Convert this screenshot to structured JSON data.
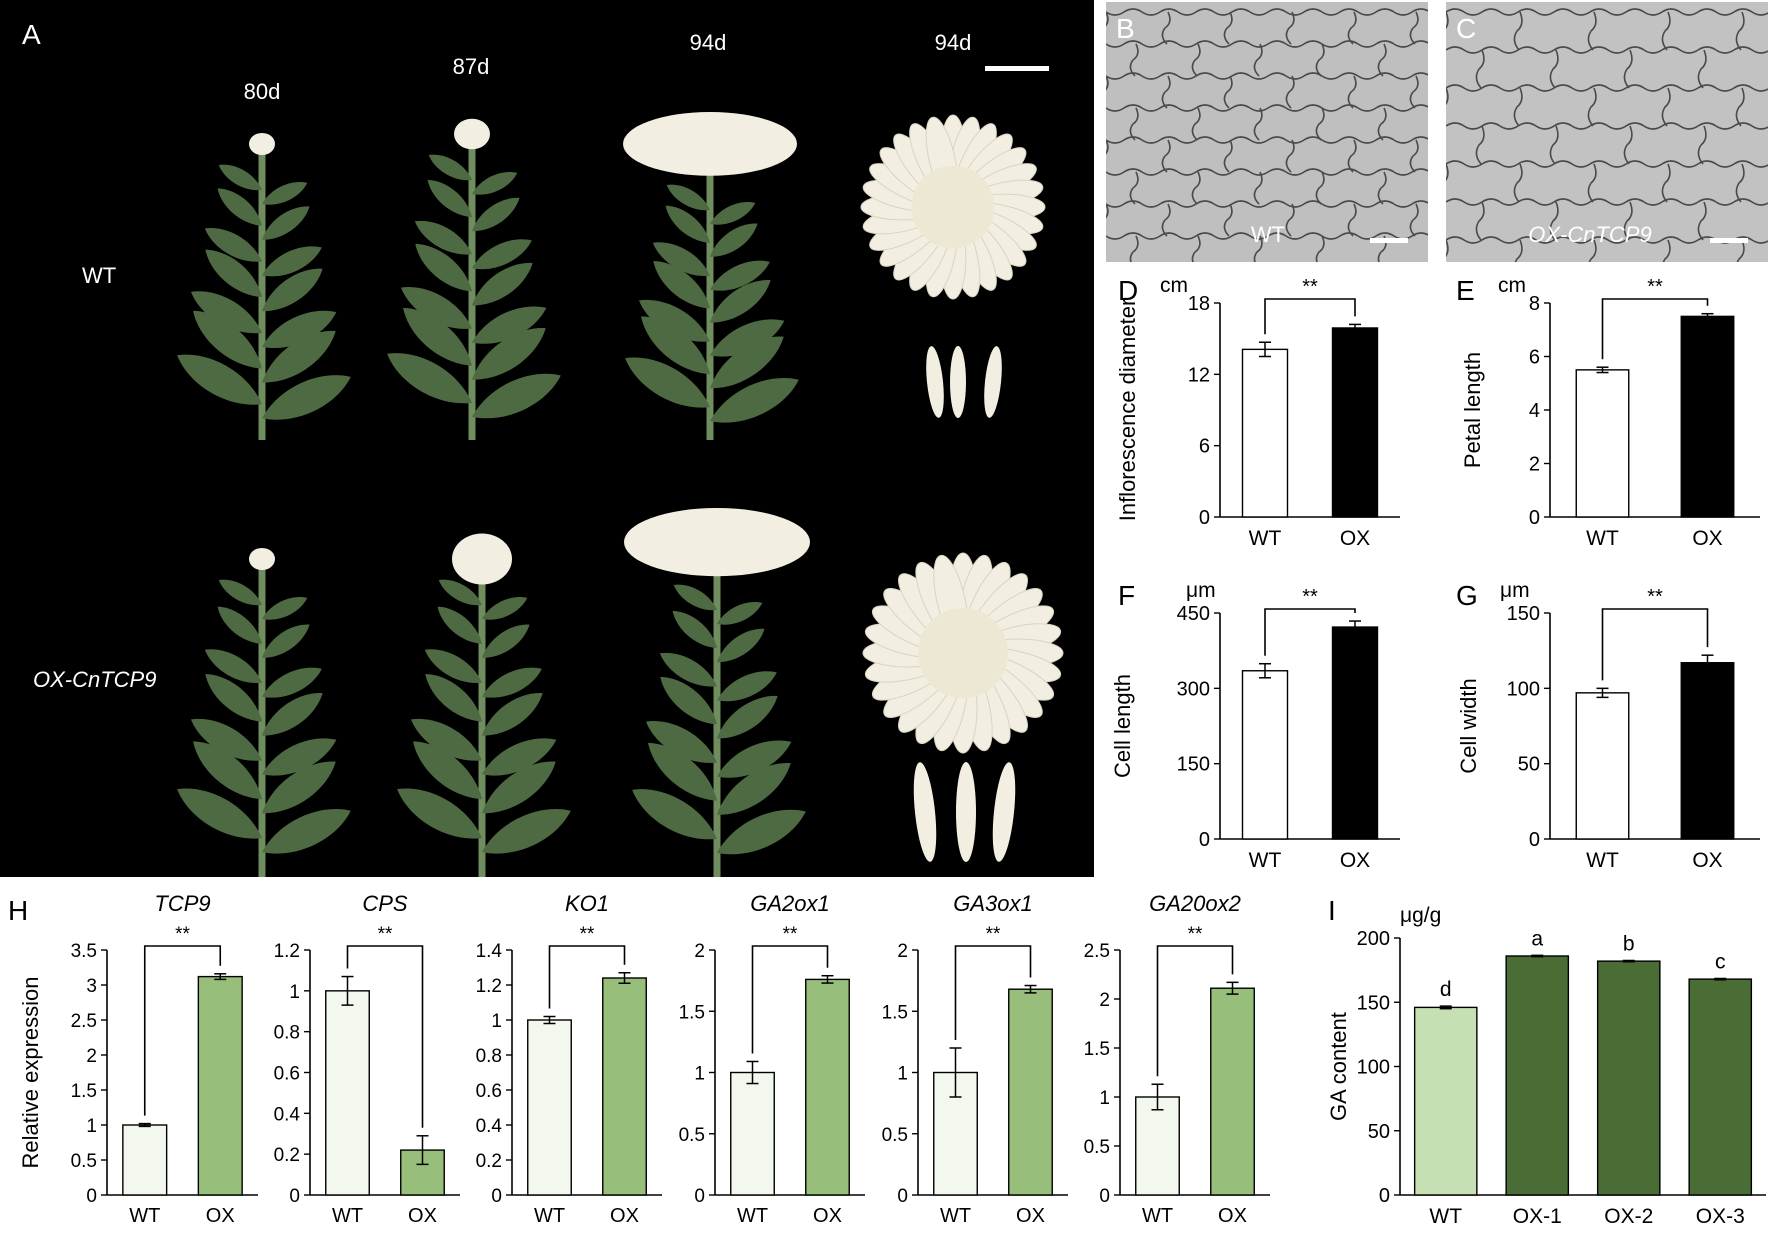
{
  "colors": {
    "photo_bg": "#000000",
    "micro_bg": "#bfbfbf",
    "cell_wall": "#4a4a4a",
    "bar_wt_fill": "#ffffff",
    "bar_ox_fill": "#000000",
    "expr_wt_fill": "#f3f8ee",
    "expr_ox_fill": "#98be7b",
    "ga_wt_fill": "#c6e0b4",
    "ga_ox_fill": "#4a6d35",
    "axis": "#000000",
    "leaf": "#4d6a42",
    "stem": "#6f8d5e",
    "petal": "#f2efe2"
  },
  "panel_a": {
    "label": "A",
    "ages_wt": [
      "80d",
      "87d",
      "94d",
      "94d"
    ],
    "row_wt_label": "WT",
    "row_ox_label": "OX-CnTCP9"
  },
  "panel_b": {
    "label": "B",
    "caption": "WT"
  },
  "panel_c": {
    "label": "C",
    "caption": "OX-CnTCP9"
  },
  "chart_data": [
    {
      "type": "bar",
      "panel": "D",
      "unit": "cm",
      "ylabel": "Inflorescence diameter",
      "categories": [
        "WT",
        "OX"
      ],
      "values": [
        14.1,
        15.9
      ],
      "errors": [
        0.6,
        0.3
      ],
      "ylim": [
        0,
        18
      ],
      "yticks": [
        "0",
        "6",
        "12",
        "18"
      ],
      "significance": "**",
      "colors": [
        "#ffffff",
        "#000000"
      ]
    },
    {
      "type": "bar",
      "panel": "E",
      "unit": "cm",
      "ylabel": "Petal length",
      "categories": [
        "WT",
        "OX"
      ],
      "values": [
        5.5,
        7.5
      ],
      "errors": [
        0.1,
        0.1
      ],
      "ylim": [
        0,
        8
      ],
      "yticks": [
        "0",
        "2",
        "4",
        "6",
        "8"
      ],
      "significance": "**",
      "colors": [
        "#ffffff",
        "#000000"
      ]
    },
    {
      "type": "bar",
      "panel": "F",
      "unit": "μm",
      "ylabel": "Cell length",
      "categories": [
        "WT",
        "OX"
      ],
      "values": [
        335,
        422
      ],
      "errors": [
        14,
        12
      ],
      "ylim": [
        0,
        450
      ],
      "yticks": [
        "0",
        "150",
        "300",
        "450"
      ],
      "significance": "**",
      "colors": [
        "#ffffff",
        "#000000"
      ]
    },
    {
      "type": "bar",
      "panel": "G",
      "unit": "μm",
      "ylabel": "Cell width",
      "categories": [
        "WT",
        "OX"
      ],
      "values": [
        97,
        117
      ],
      "errors": [
        3,
        5
      ],
      "ylim": [
        0,
        150
      ],
      "yticks": [
        "0",
        "50",
        "100",
        "150"
      ],
      "significance": "**",
      "colors": [
        "#ffffff",
        "#000000"
      ]
    },
    {
      "type": "bar",
      "panel": "H",
      "title": "TCP9",
      "ylabel": "Relative expression",
      "categories": [
        "WT",
        "OX"
      ],
      "values": [
        1.0,
        3.12
      ],
      "errors": [
        0.02,
        0.04
      ],
      "ylim": [
        0,
        3.5
      ],
      "yticks": [
        "0",
        "0.5",
        "1",
        "1.5",
        "2",
        "2.5",
        "3",
        "3.5"
      ],
      "significance": "**",
      "colors": [
        "#f3f8ee",
        "#98be7b"
      ]
    },
    {
      "type": "bar",
      "title": "CPS",
      "categories": [
        "WT",
        "OX"
      ],
      "values": [
        1.0,
        0.22
      ],
      "errors": [
        0.07,
        0.07
      ],
      "ylim": [
        0,
        1.2
      ],
      "yticks": [
        "0",
        "0.2",
        "0.4",
        "0.6",
        "0.8",
        "1",
        "1.2"
      ],
      "significance": "**",
      "colors": [
        "#f3f8ee",
        "#98be7b"
      ]
    },
    {
      "type": "bar",
      "title": "KO1",
      "categories": [
        "WT",
        "OX"
      ],
      "values": [
        1.0,
        1.24
      ],
      "errors": [
        0.02,
        0.03
      ],
      "ylim": [
        0,
        1.4
      ],
      "yticks": [
        "0",
        "0.2",
        "0.4",
        "0.6",
        "0.8",
        "1",
        "1.2",
        "1.4"
      ],
      "significance": "**",
      "colors": [
        "#f3f8ee",
        "#98be7b"
      ]
    },
    {
      "type": "bar",
      "title": "GA2ox1",
      "categories": [
        "WT",
        "OX"
      ],
      "values": [
        1.0,
        1.76
      ],
      "errors": [
        0.09,
        0.03
      ],
      "ylim": [
        0,
        2
      ],
      "yticks": [
        "0",
        "0.5",
        "1",
        "1.5",
        "2"
      ],
      "significance": "**",
      "colors": [
        "#f3f8ee",
        "#98be7b"
      ]
    },
    {
      "type": "bar",
      "title": "GA3ox1",
      "categories": [
        "WT",
        "OX"
      ],
      "values": [
        1.0,
        1.68
      ],
      "errors": [
        0.2,
        0.03
      ],
      "ylim": [
        0,
        2
      ],
      "yticks": [
        "0",
        "0.5",
        "1",
        "1.5",
        "2"
      ],
      "significance": "**",
      "colors": [
        "#f3f8ee",
        "#98be7b"
      ]
    },
    {
      "type": "bar",
      "title": "GA20ox2",
      "categories": [
        "WT",
        "OX"
      ],
      "values": [
        1.0,
        2.11
      ],
      "errors": [
        0.13,
        0.06
      ],
      "ylim": [
        0,
        2.5
      ],
      "yticks": [
        "0",
        "0.5",
        "1",
        "1.5",
        "2",
        "2.5"
      ],
      "significance": "**",
      "colors": [
        "#f3f8ee",
        "#98be7b"
      ]
    },
    {
      "type": "bar",
      "panel": "I",
      "unit": "μg/g",
      "ylabel": "GA content",
      "categories": [
        "WT",
        "OX-1",
        "OX-2",
        "OX-3"
      ],
      "values": [
        146,
        186,
        182,
        168
      ],
      "errors": [
        1,
        0.5,
        0.5,
        0.5
      ],
      "ylim": [
        0,
        200
      ],
      "yticks": [
        "0",
        "50",
        "100",
        "150",
        "200"
      ],
      "letters": [
        "d",
        "a",
        "b",
        "c"
      ],
      "colors": [
        "#c6e0b4",
        "#4a6d35",
        "#4a6d35",
        "#4a6d35"
      ]
    }
  ]
}
